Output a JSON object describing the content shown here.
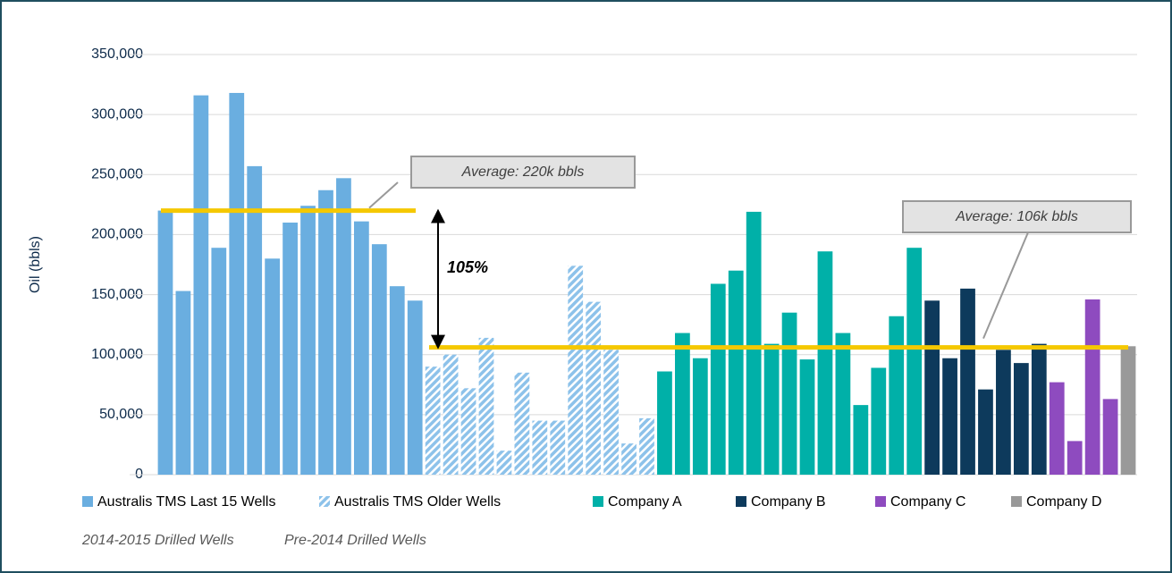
{
  "chart_data": {
    "type": "bar",
    "y_label": "Oil (bbls)",
    "ylim": [
      0,
      350000
    ],
    "yticks": [
      0,
      {
        "value": 50000,
        "label": "50,000"
      },
      {
        "value": 100000,
        "label": "100,000"
      },
      {
        "value": 150000,
        "label": "150,000"
      },
      {
        "value": 200000,
        "label": "200,000"
      },
      {
        "value": 250000,
        "label": "250,000"
      },
      {
        "value": 300000,
        "label": "300,000"
      },
      {
        "value": 350000,
        "label": "350,000"
      }
    ],
    "grid": true,
    "series": [
      {
        "name": "Australis TMS Last 15 Wells",
        "color": "#6aaee0",
        "values": [
          220000,
          153000,
          316000,
          189000,
          318000,
          257000,
          180000,
          210000,
          224000,
          237000,
          247000,
          211000,
          192000,
          157000,
          145000
        ]
      },
      {
        "name": "Australis TMS Older Wells",
        "color": "#8dc2ea",
        "pattern": "hatch",
        "values": [
          90000,
          100000,
          72000,
          114000,
          20000,
          85000,
          45000,
          45000,
          174000,
          144000,
          104000,
          26000,
          47000
        ]
      },
      {
        "name": "Company A",
        "color": "#00b0a8",
        "values": [
          86000,
          118000,
          97000,
          159000,
          170000,
          219000,
          109000,
          135000,
          96000,
          186000,
          118000,
          58000,
          89000,
          132000,
          189000
        ]
      },
      {
        "name": "Company B",
        "color": "#0d3a5c",
        "values": [
          145000,
          97000,
          155000,
          71000,
          104000,
          93000,
          109000
        ]
      },
      {
        "name": "Company C",
        "color": "#8e4bbf",
        "values": [
          77000,
          28000,
          146000,
          63000
        ]
      },
      {
        "name": "Company D",
        "color": "#999999",
        "values": [
          107000
        ]
      }
    ],
    "reference_lines": [
      {
        "value": 220000,
        "label": "Average: 220k bbls",
        "color": "#f5c800"
      },
      {
        "value": 106000,
        "label": "Average: 106k bbls",
        "color": "#f5c800"
      }
    ],
    "annotations": [
      "105%"
    ],
    "legend_notes": [
      "2014-2015 Drilled Wells",
      "Pre-2014 Drilled Wells"
    ]
  }
}
